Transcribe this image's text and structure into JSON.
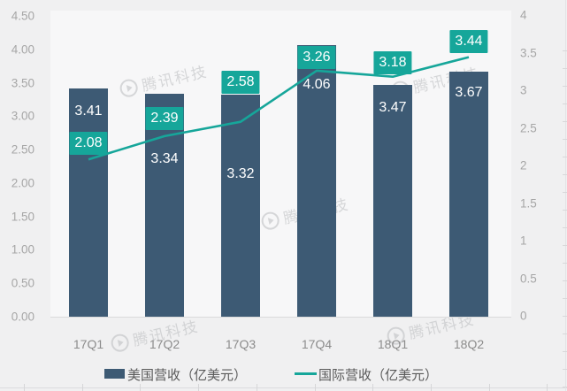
{
  "chart_data": {
    "type": "bar",
    "subtype": "combo-bar-line-dual-axis",
    "categories": [
      "17Q1",
      "17Q2",
      "17Q3",
      "17Q4",
      "18Q1",
      "18Q2"
    ],
    "series": [
      {
        "name": "美国营收（亿美元）",
        "type": "bar",
        "axis": "left",
        "color": "#3d5a74",
        "values": [
          3.41,
          3.34,
          3.32,
          4.06,
          3.47,
          3.67
        ],
        "labels": [
          "3.41",
          "3.34",
          "3.32",
          "4.06",
          "3.47",
          "3.67"
        ],
        "label_color": "#ffffff"
      },
      {
        "name": "国际营收（亿美元）",
        "type": "line",
        "axis": "right",
        "color": "#16a69a",
        "values": [
          2.08,
          2.39,
          2.58,
          3.26,
          3.18,
          3.44
        ],
        "labels": [
          "2.08",
          "2.39",
          "2.58",
          "3.26",
          "3.18",
          "3.44"
        ],
        "label_color": "#ffffff",
        "label_background": "#16a69a"
      }
    ],
    "title": "",
    "xlabel": "",
    "ylabel": "",
    "left_axis": {
      "min": 0,
      "max": 4.5,
      "tick_labels": [
        "0.00",
        "0.50",
        "1.00",
        "1.50",
        "2.00",
        "2.50",
        "3.00",
        "3.50",
        "4.00",
        "4.50"
      ]
    },
    "right_axis": {
      "min": 0,
      "max": 4,
      "tick_labels": [
        "0",
        "0.5",
        "1",
        "1.5",
        "2",
        "2.5",
        "3",
        "3.5",
        "4"
      ]
    },
    "grid": "off",
    "legend": [
      {
        "label": "美国营收（亿美元）",
        "marker": "bar-swatch",
        "color": "#3d5a74"
      },
      {
        "label": "国际营收（亿美元）",
        "marker": "line-swatch",
        "color": "#16a69a"
      }
    ],
    "legend_position": "bottom"
  },
  "watermark": {
    "text": "腾讯科技",
    "icon": "tencent-logo-icon"
  },
  "colors": {
    "background": "#f0f0f1",
    "plot_background": "#f7f7f8",
    "bar": "#3d5a74",
    "line": "#16a69a",
    "axis_tick_text": "#a6a6a6",
    "category_text": "#8c8c8c",
    "legend_text": "#595959",
    "baseline": "#d9d9da"
  }
}
